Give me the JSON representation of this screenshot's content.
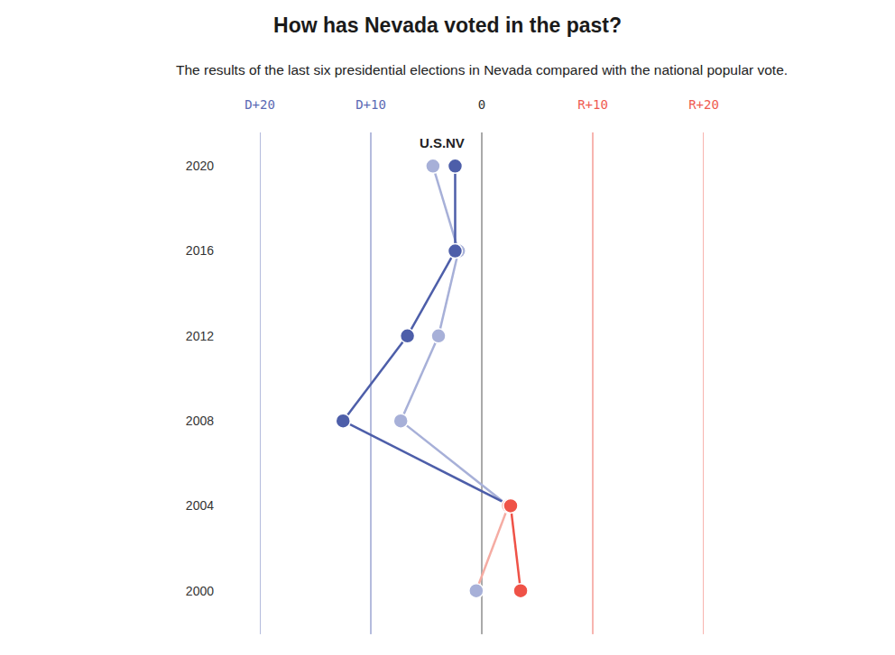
{
  "chart_data": {
    "type": "line",
    "title": "How has Nevada voted in the past?",
    "subtitle": "The results of the last six presidential elections in Nevada compared with the national popular vote.",
    "orientation": "horizontal",
    "categories": [
      "2020",
      "2016",
      "2012",
      "2008",
      "2004",
      "2000"
    ],
    "series": [
      {
        "name": "U.S.",
        "colors": [
          "#a7b0d8",
          "#a7b0d8",
          "#a7b0d8",
          "#a7b0d8",
          "#f5aca3",
          "#a7b0d8"
        ],
        "values": [
          -4.4,
          -2.1,
          -3.9,
          -7.3,
          2.4,
          -0.5
        ]
      },
      {
        "name": "NV",
        "colors": [
          "#4d5ea9",
          "#4d5ea9",
          "#4d5ea9",
          "#4d5ea9",
          "#ef5247",
          "#ef5247"
        ],
        "values": [
          -2.4,
          -2.4,
          -6.7,
          -12.5,
          2.6,
          3.5
        ]
      }
    ],
    "xlim": [
      -20,
      20
    ],
    "xticks": [
      {
        "value": -20,
        "label": "D+20"
      },
      {
        "value": -10,
        "label": "D+10"
      },
      0,
      {
        "value": 10,
        "label": "R+10"
      },
      {
        "value": 20,
        "label": "R+20"
      }
    ],
    "grid": true,
    "marker": "circle"
  }
}
